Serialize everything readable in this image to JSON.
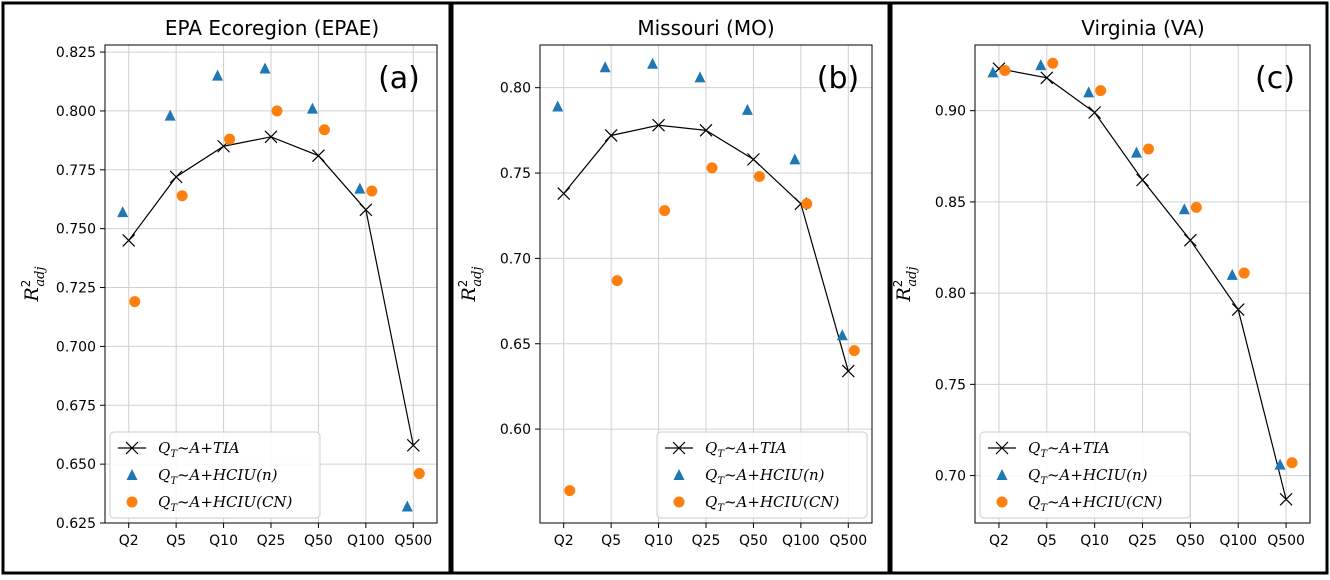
{
  "chart_data": [
    {
      "type": "scatter",
      "title": "EPA Ecoregion (EPAE)",
      "panel_label": "(a)",
      "ylabel": "R^2_adj",
      "categories": [
        "Q2",
        "Q5",
        "Q10",
        "Q25",
        "Q50",
        "Q100",
        "Q500"
      ],
      "ylim": [
        0.625,
        0.828
      ],
      "yticks": [
        0.625,
        0.65,
        0.675,
        0.7,
        0.725,
        0.75,
        0.775,
        0.8,
        0.825
      ],
      "ytick_labels": [
        "0.625",
        "0.650",
        "0.675",
        "0.700",
        "0.725",
        "0.750",
        "0.775",
        "0.800",
        "0.825"
      ],
      "grid": true,
      "legend_position": "lower-left",
      "series": [
        {
          "name": "Q_T~A+TIA",
          "marker": "x-line",
          "color": "#000000",
          "values": [
            0.745,
            0.772,
            0.785,
            0.789,
            0.781,
            0.758,
            0.658
          ]
        },
        {
          "name": "Q_T~A+HCIU(n)",
          "marker": "triangle",
          "color": "#1f77b4",
          "values": [
            0.757,
            0.798,
            0.815,
            0.818,
            0.801,
            0.767,
            0.632
          ]
        },
        {
          "name": "Q_T~A+HCIU(CN)",
          "marker": "circle",
          "color": "#ff7f0e",
          "values": [
            0.719,
            0.764,
            0.788,
            0.8,
            0.792,
            0.766,
            0.646
          ]
        }
      ]
    },
    {
      "type": "scatter",
      "title": "Missouri (MO)",
      "panel_label": "(b)",
      "ylabel": "R^2_adj",
      "categories": [
        "Q2",
        "Q5",
        "Q10",
        "Q25",
        "Q50",
        "Q100",
        "Q500"
      ],
      "ylim": [
        0.545,
        0.825
      ],
      "yticks": [
        0.6,
        0.65,
        0.7,
        0.75,
        0.8
      ],
      "ytick_labels": [
        "0.60",
        "0.65",
        "0.70",
        "0.75",
        "0.80"
      ],
      "grid": true,
      "legend_position": "lower-right",
      "series": [
        {
          "name": "Q_T~A+TIA",
          "marker": "x-line",
          "color": "#000000",
          "values": [
            0.738,
            0.772,
            0.778,
            0.775,
            0.758,
            0.732,
            0.634
          ]
        },
        {
          "name": "Q_T~A+HCIU(n)",
          "marker": "triangle",
          "color": "#1f77b4",
          "values": [
            0.789,
            0.812,
            0.814,
            0.806,
            0.787,
            0.758,
            0.655
          ]
        },
        {
          "name": "Q_T~A+HCIU(CN)",
          "marker": "circle",
          "color": "#ff7f0e",
          "values": [
            0.564,
            0.687,
            0.728,
            0.753,
            0.748,
            0.732,
            0.646
          ]
        }
      ]
    },
    {
      "type": "scatter",
      "title": "Virginia (VA)",
      "panel_label": "(c)",
      "ylabel": "R^2_adj",
      "categories": [
        "Q2",
        "Q5",
        "Q10",
        "Q25",
        "Q50",
        "Q100",
        "Q500"
      ],
      "ylim": [
        0.674,
        0.936
      ],
      "yticks": [
        0.7,
        0.75,
        0.8,
        0.85,
        0.9
      ],
      "ytick_labels": [
        "0.70",
        "0.75",
        "0.80",
        "0.85",
        "0.90"
      ],
      "grid": true,
      "legend_position": "lower-left",
      "series": [
        {
          "name": "Q_T~A+TIA",
          "marker": "x-line",
          "color": "#000000",
          "values": [
            0.923,
            0.918,
            0.899,
            0.862,
            0.829,
            0.791,
            0.687
          ]
        },
        {
          "name": "Q_T~A+HCIU(n)",
          "marker": "triangle",
          "color": "#1f77b4",
          "values": [
            0.921,
            0.925,
            0.91,
            0.877,
            0.846,
            0.81,
            0.706
          ]
        },
        {
          "name": "Q_T~A+HCIU(CN)",
          "marker": "circle",
          "color": "#ff7f0e",
          "values": [
            0.922,
            0.926,
            0.911,
            0.879,
            0.847,
            0.811,
            0.707
          ]
        }
      ]
    }
  ]
}
